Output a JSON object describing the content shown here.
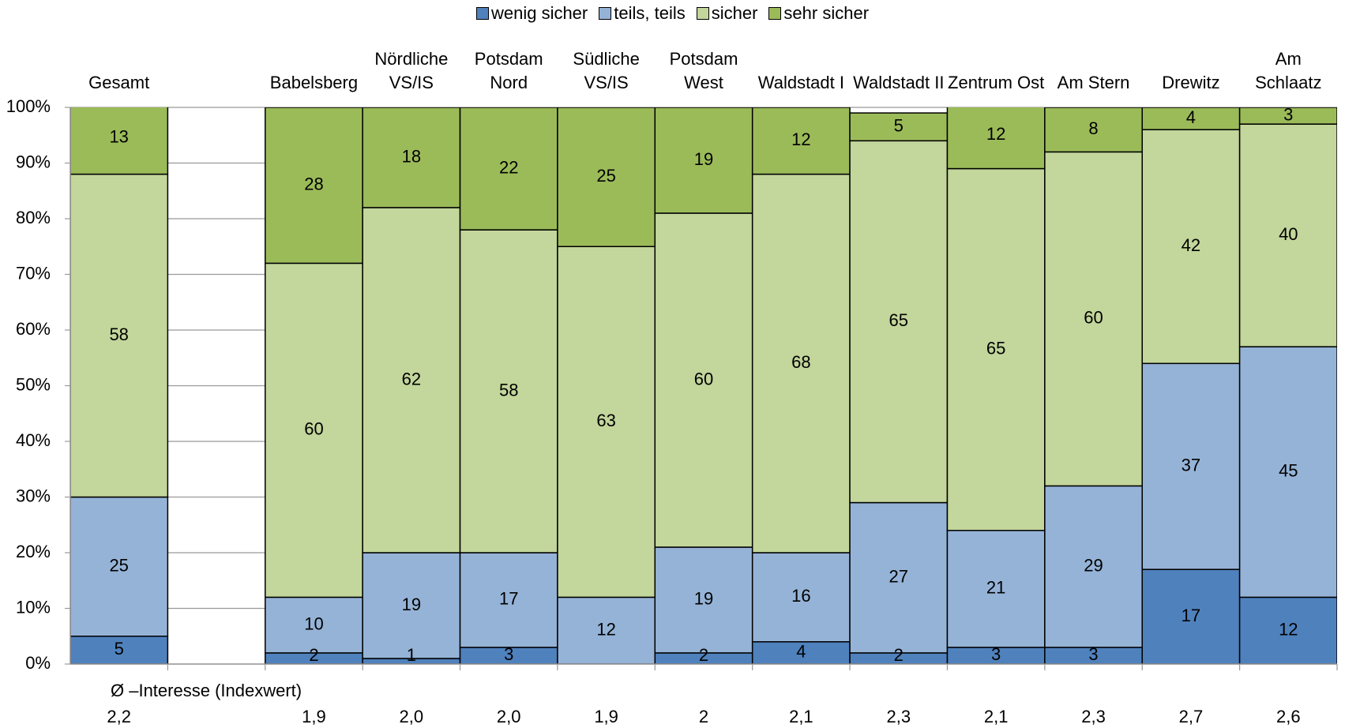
{
  "chart_data": {
    "type": "stacked_bar",
    "categories": [
      "Gesamt",
      null,
      "Babelsberg",
      "Nördliche\nVS/IS",
      "Potsdam\nNord",
      "Südliche\nVS/IS",
      "Potsdam\nWest",
      "Waldstadt I",
      "Waldstadt II",
      "Zentrum Ost",
      "Am Stern",
      "Drewitz",
      "Am Schlaatz"
    ],
    "series": [
      {
        "name": "wenig sicher",
        "color": "#4f81bd",
        "values": [
          5,
          null,
          2,
          1,
          3,
          null,
          2,
          4,
          2,
          3,
          3,
          17,
          12
        ]
      },
      {
        "name": "teils, teils",
        "color": "#95b3d7",
        "values": [
          25,
          null,
          10,
          19,
          17,
          12,
          19,
          16,
          27,
          21,
          29,
          37,
          45
        ]
      },
      {
        "name": "sicher",
        "color": "#c3d69b",
        "values": [
          58,
          null,
          60,
          62,
          58,
          63,
          60,
          68,
          65,
          65,
          60,
          42,
          40
        ]
      },
      {
        "name": "sehr sicher",
        "color": "#9bbb59",
        "values": [
          13,
          null,
          28,
          18,
          22,
          25,
          19,
          12,
          5,
          12,
          8,
          4,
          3
        ]
      }
    ],
    "ylim": [
      0,
      100
    ],
    "yticks": [
      {
        "value": 0,
        "label": "0%"
      },
      {
        "value": 10,
        "label": "10%"
      },
      {
        "value": 20,
        "label": "20%"
      },
      {
        "value": 30,
        "label": "30%"
      },
      {
        "value": 40,
        "label": "40%"
      },
      {
        "value": 50,
        "label": "50%"
      },
      {
        "value": 60,
        "label": "60%"
      },
      {
        "value": 70,
        "label": "70%"
      },
      {
        "value": 80,
        "label": "80%"
      },
      {
        "value": 90,
        "label": "90%"
      },
      {
        "value": 100,
        "label": "100%"
      }
    ],
    "grid": true,
    "legend": "top",
    "index_label": "Ø –Interesse (Indexwert)",
    "index_values": [
      "2,2",
      null,
      "1,9",
      "2,0",
      "2,0",
      "1,9",
      "2",
      "2,1",
      "2,3",
      "2,1",
      "2,3",
      "2,7",
      "2,6"
    ]
  }
}
